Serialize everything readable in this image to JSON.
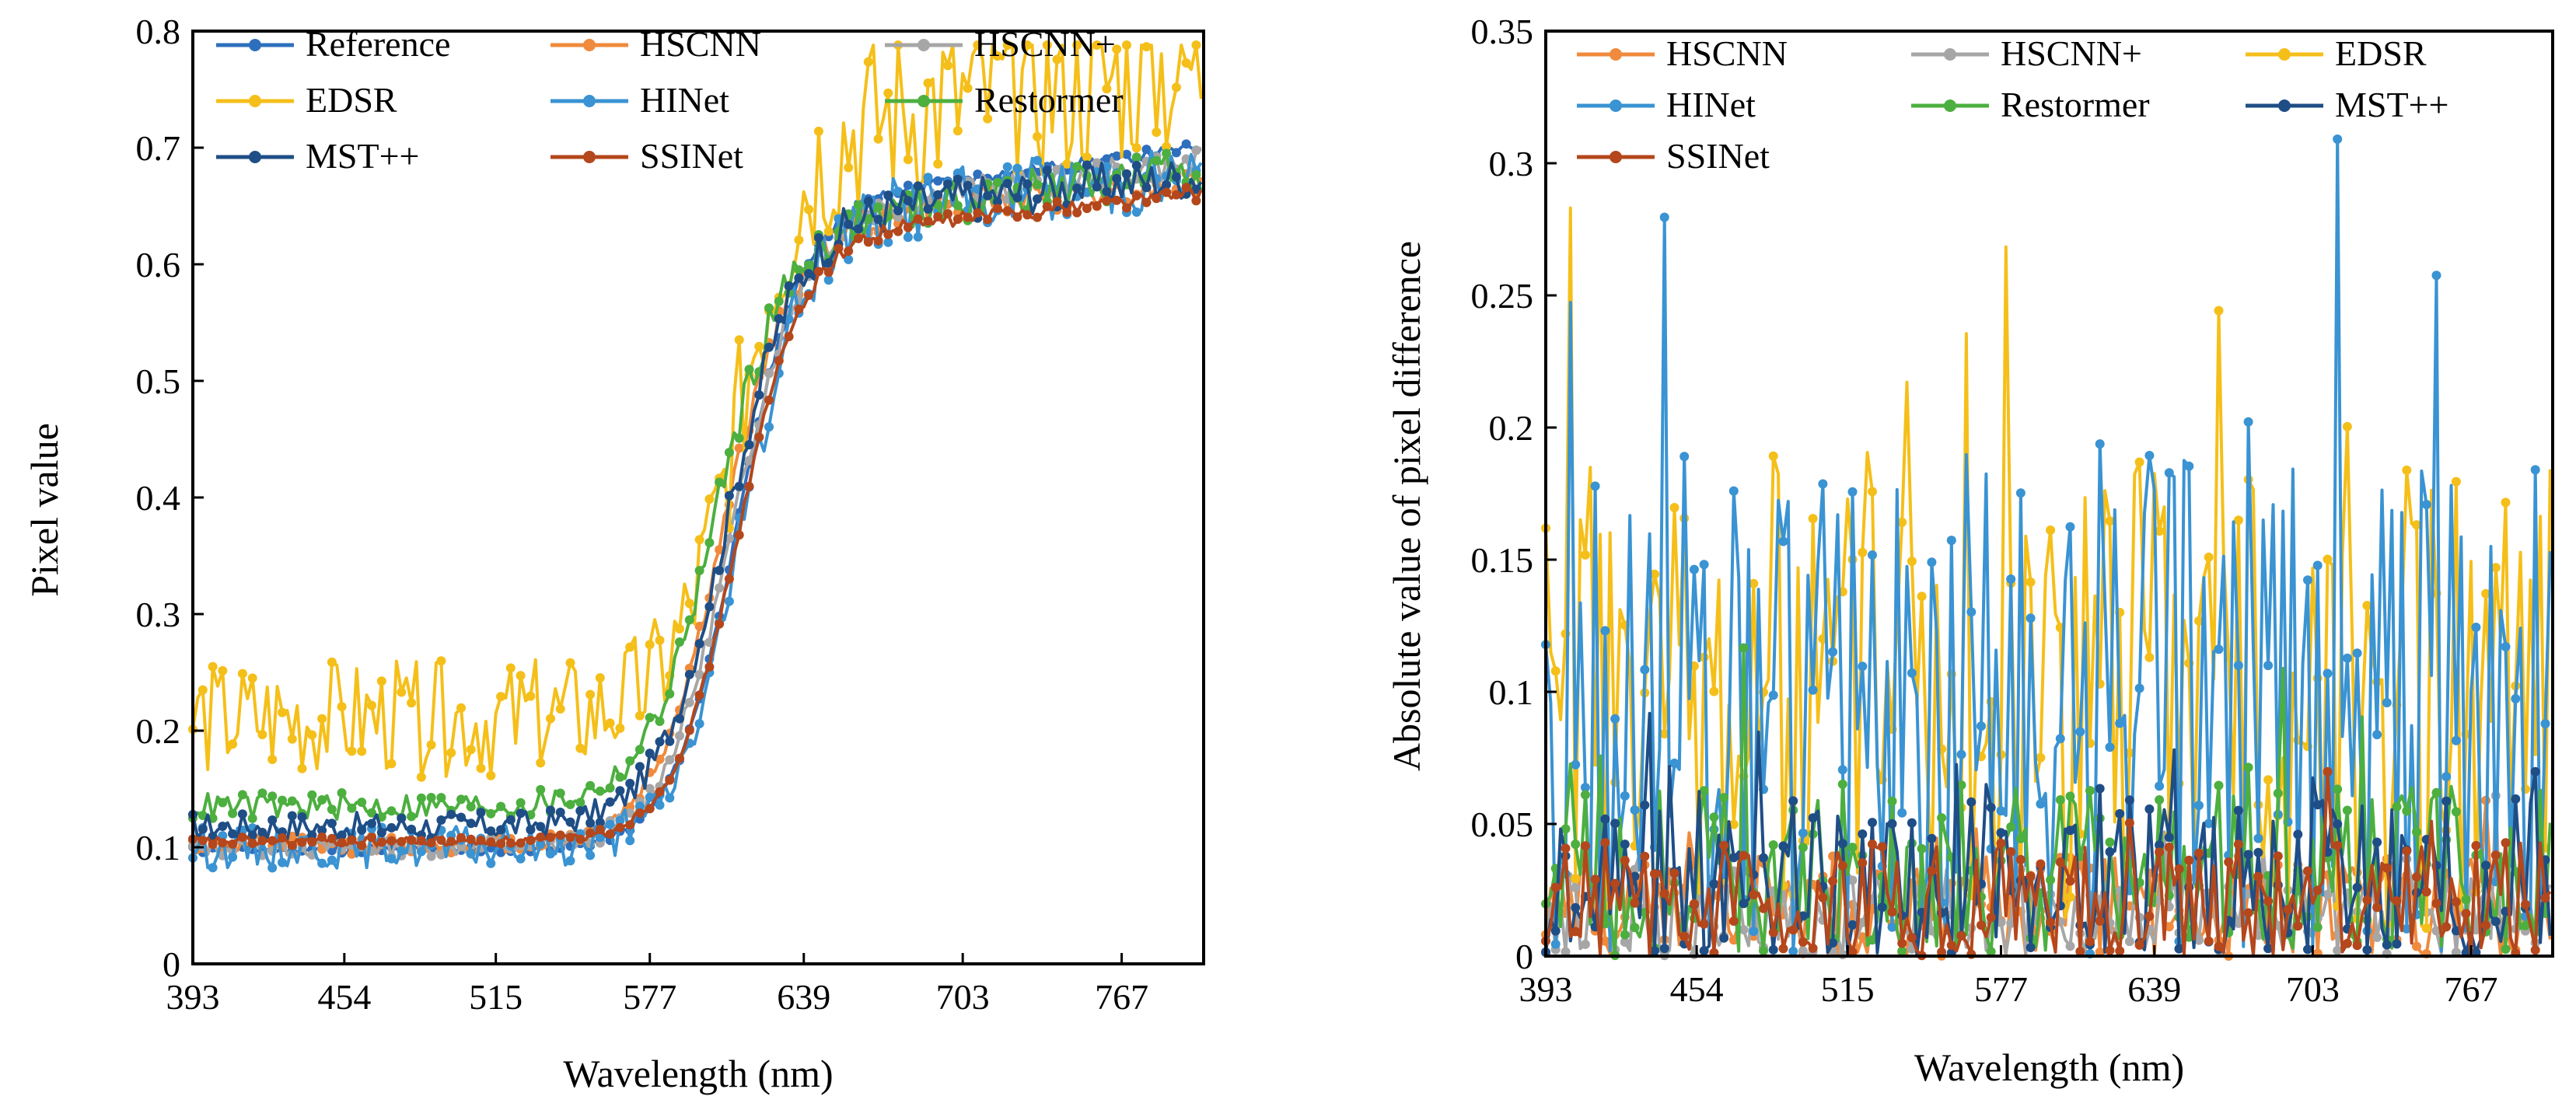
{
  "colors": {
    "Reference": "#2e6fbd",
    "HSCNN": "#f08a3c",
    "HSCNN+": "#a6a6a6",
    "EDSR": "#f5bf1a",
    "HINet": "#3a93d2",
    "Restormer": "#4caf3f",
    "MST++": "#1f4e86",
    "SSINet": "#b4471c"
  },
  "chart_data": [
    {
      "type": "line",
      "xlabel": "Wavelength (nm)",
      "ylabel": "Pixel value",
      "xlim": [
        393,
        800
      ],
      "ylim": [
        0,
        0.8
      ],
      "x_ticks": [
        393,
        454,
        515,
        577,
        639,
        703,
        767
      ],
      "y_ticks": [
        0,
        0.1,
        0.2,
        0.3,
        0.4,
        0.5,
        0.6,
        0.7,
        0.8
      ],
      "y_tick_labels": [
        "0",
        "0.1",
        "0.2",
        "0.3",
        "0.4",
        "0.5",
        "0.6",
        "0.7",
        "0.8"
      ],
      "legend": [
        "Reference",
        "HSCNN",
        "HSCNN+",
        "EDSR",
        "HINet",
        "Restormer",
        "MST++",
        "SSINet"
      ],
      "legend_position": "top-left",
      "x_step": 2,
      "generator": "sigmoid",
      "series": [
        {
          "name": "Reference",
          "base": 0.098,
          "amp": 0.55,
          "mid": 612,
          "width": 13,
          "slope": 0.00028,
          "noise": 0.003,
          "bias": 0,
          "seed": 11
        },
        {
          "name": "HSCNN",
          "base": 0.102,
          "amp": 0.53,
          "mid": 606,
          "width": 14,
          "slope": 0.0002,
          "noise": 0.008,
          "bias": 0.0,
          "seed": 12
        },
        {
          "name": "HSCNN+",
          "base": 0.1,
          "amp": 0.54,
          "mid": 610,
          "width": 14,
          "slope": 0.00025,
          "noise": 0.008,
          "bias": 0.0,
          "seed": 13
        },
        {
          "name": "EDSR",
          "base": 0.1,
          "amp": 0.55,
          "mid": 612,
          "width": 13,
          "slope": 0.00028,
          "noise": 0.05,
          "bias": 0.11,
          "seed": 14
        },
        {
          "name": "HINet",
          "base": 0.1,
          "amp": 0.54,
          "mid": 614,
          "width": 13,
          "slope": 0.0002,
          "noise": 0.018,
          "bias": 0.0,
          "seed": 15
        },
        {
          "name": "Restormer",
          "base": 0.115,
          "amp": 0.5,
          "mid": 603,
          "width": 14,
          "slope": 0.00028,
          "noise": 0.012,
          "bias": 0.02,
          "seed": 16
        },
        {
          "name": "MST++",
          "base": 0.118,
          "amp": 0.52,
          "mid": 608,
          "width": 14,
          "slope": 0.0002,
          "noise": 0.012,
          "bias": 0.0,
          "seed": 17
        },
        {
          "name": "SSINet",
          "base": 0.105,
          "amp": 0.515,
          "mid": 612,
          "width": 13,
          "slope": 0.00022,
          "noise": 0.004,
          "bias": 0.0,
          "seed": 18
        }
      ]
    },
    {
      "type": "line",
      "xlabel": "Wavelength (nm)",
      "ylabel": "Absolute value of pixel difference",
      "xlim": [
        393,
        800
      ],
      "ylim": [
        0,
        0.35
      ],
      "x_ticks": [
        393,
        454,
        515,
        577,
        639,
        703,
        767
      ],
      "y_ticks": [
        0,
        0.05,
        0.1,
        0.15,
        0.2,
        0.25,
        0.3,
        0.35
      ],
      "y_tick_labels": [
        "0",
        "0.05",
        "0.1",
        "0.15",
        "0.2",
        "0.25",
        "0.3",
        "0.35"
      ],
      "legend": [
        "HSCNN",
        "HSCNN+",
        "EDSR",
        "HINet",
        "Restormer",
        "MST++",
        "SSINet"
      ],
      "legend_position": "top-left",
      "x_step": 2,
      "generator": "noise",
      "series": [
        {
          "name": "HSCNN",
          "level": 0.018,
          "spread": 0.02,
          "seed": 21
        },
        {
          "name": "HSCNN+",
          "level": 0.015,
          "spread": 0.018,
          "seed": 22
        },
        {
          "name": "EDSR",
          "level": 0.1,
          "spread": 0.09,
          "seed": 23
        },
        {
          "name": "HINet",
          "level": 0.09,
          "spread": 0.1,
          "seed": 24
        },
        {
          "name": "Restormer",
          "level": 0.025,
          "spread": 0.04,
          "seed": 25
        },
        {
          "name": "MST++",
          "level": 0.02,
          "spread": 0.04,
          "seed": 26
        },
        {
          "name": "SSINet",
          "level": 0.018,
          "spread": 0.025,
          "seed": 27
        }
      ]
    }
  ]
}
